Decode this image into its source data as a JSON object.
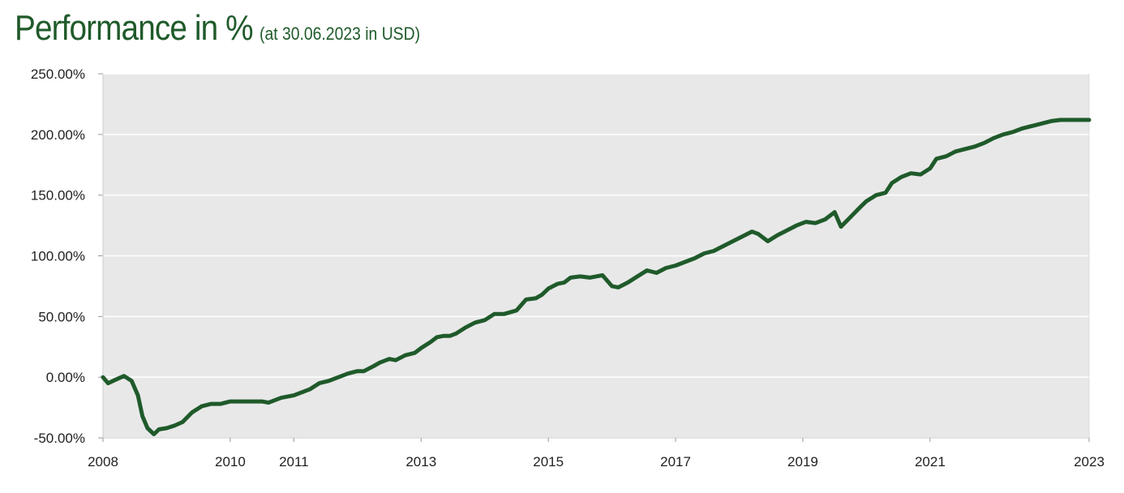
{
  "header": {
    "title": "Performance in %",
    "subtitle": "(at 30.06.2023 in USD)"
  },
  "colors": {
    "line": "#1f5a2a",
    "plot_bg": "#e8e8e8",
    "grid": "#ffffff",
    "title": "#1f5a2a"
  },
  "chart_data": {
    "type": "line",
    "title": "Performance in %",
    "subtitle": "(at 30.06.2023 in USD)",
    "xlabel": "",
    "ylabel": "",
    "ylim": [
      -50,
      250
    ],
    "xlim": [
      2008.0,
      2023.5
    ],
    "grid": true,
    "y_ticks": [
      -50,
      0,
      50,
      100,
      150,
      200,
      250
    ],
    "y_tick_labels": [
      "-50.00%",
      "0.00%",
      "50.00%",
      "100.00%",
      "150.00%",
      "200.00%",
      "250.00%"
    ],
    "x_tick_positions": [
      2008.0,
      2010.0,
      2011.0,
      2013.0,
      2015.0,
      2017.0,
      2019.0,
      2021.0,
      2023.5
    ],
    "x_tick_labels": [
      "2008",
      "2010",
      "2011",
      "2013",
      "2015",
      "2017",
      "2019",
      "2021",
      "2023"
    ],
    "series": [
      {
        "x": [
          2008.0,
          2008.08,
          2008.2,
          2008.33,
          2008.45,
          2008.55,
          2008.62,
          2008.7,
          2008.8,
          2008.88,
          2009.0,
          2009.12,
          2009.25,
          2009.4,
          2009.55,
          2009.7,
          2009.85,
          2010.0,
          2010.2,
          2010.4,
          2010.5,
          2010.6,
          2010.8,
          2011.0,
          2011.1,
          2011.25,
          2011.4,
          2011.55,
          2011.7,
          2011.85,
          2012.0,
          2012.1,
          2012.25,
          2012.35,
          2012.5,
          2012.6,
          2012.75,
          2012.9,
          2013.0,
          2013.15,
          2013.25,
          2013.35,
          2013.45,
          2013.55,
          2013.7,
          2013.85,
          2014.0,
          2014.15,
          2014.3,
          2014.5,
          2014.65,
          2014.8,
          2014.9,
          2015.0,
          2015.15,
          2015.25,
          2015.35,
          2015.5,
          2015.65,
          2015.85,
          2016.0,
          2016.1,
          2016.25,
          2016.4,
          2016.55,
          2016.7,
          2016.85,
          2017.0,
          2017.15,
          2017.3,
          2017.45,
          2017.6,
          2017.75,
          2017.9,
          2018.05,
          2018.2,
          2018.3,
          2018.45,
          2018.6,
          2018.75,
          2018.9,
          2019.05,
          2019.2,
          2019.35,
          2019.5,
          2019.6,
          2019.75,
          2019.9,
          2020.0,
          2020.15,
          2020.3,
          2020.4,
          2020.55,
          2020.7,
          2020.85,
          2021.0,
          2021.1,
          2021.25,
          2021.4,
          2021.55,
          2021.7,
          2021.85,
          2022.0,
          2022.15,
          2022.3,
          2022.45,
          2022.6,
          2022.75,
          2022.9,
          2023.05,
          2023.2,
          2023.35,
          2023.5
        ],
        "y": [
          0,
          -5,
          -2,
          1,
          -3,
          -15,
          -32,
          -42,
          -47,
          -43,
          -42,
          -40,
          -37,
          -29,
          -24,
          -22,
          -22,
          -20,
          -20,
          -20,
          -20,
          -21,
          -17,
          -15,
          -13,
          -10,
          -5,
          -3,
          0,
          3,
          5,
          5,
          9,
          12,
          15,
          14,
          18,
          20,
          24,
          29,
          33,
          34,
          34,
          36,
          41,
          45,
          47,
          52,
          52,
          55,
          64,
          65,
          68,
          73,
          77,
          78,
          82,
          83,
          82,
          84,
          75,
          74,
          78,
          83,
          88,
          86,
          90,
          92,
          95,
          98,
          102,
          104,
          108,
          112,
          116,
          120,
          118,
          112,
          117,
          121,
          125,
          128,
          127,
          130,
          136,
          124,
          132,
          140,
          145,
          150,
          152,
          160,
          165,
          168,
          167,
          172,
          180,
          182,
          186,
          188,
          190,
          193,
          197,
          200,
          202,
          205,
          207,
          209,
          211,
          212,
          212,
          212,
          212
        ]
      }
    ]
  }
}
